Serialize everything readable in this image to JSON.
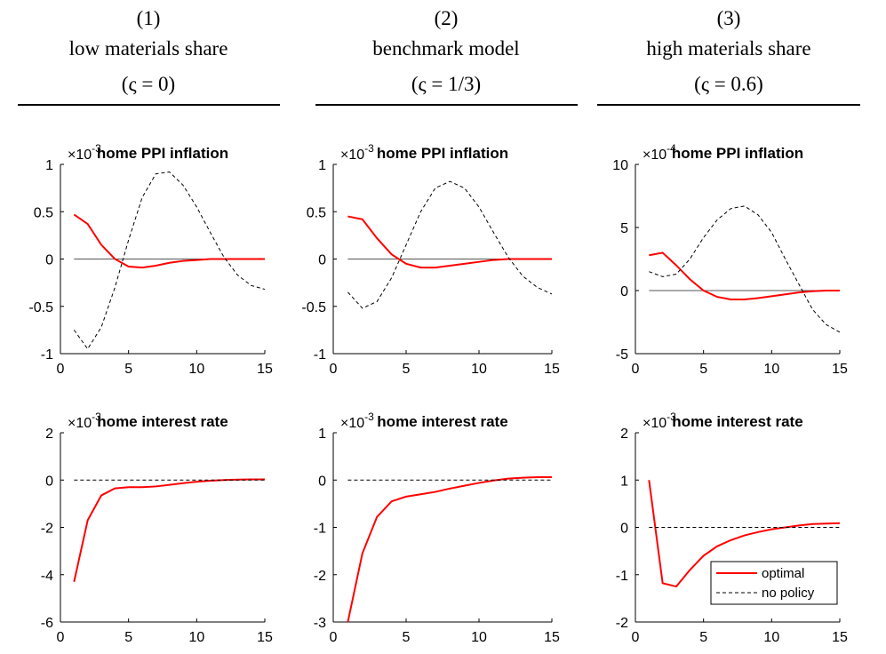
{
  "headers": [
    {
      "number": "(1)",
      "label": "low materials share",
      "param": "(ς = 0)"
    },
    {
      "number": "(2)",
      "label": "benchmark model",
      "param": "(ς = 1/3)"
    },
    {
      "number": "(3)",
      "label": "high materials share",
      "param": "(ς = 0.6)"
    }
  ],
  "chart_data": [
    {
      "type": "line",
      "title": "home PPI inflation",
      "scale_base": "×10",
      "scale_power": "-3",
      "zero_line": true,
      "x": [
        1,
        2,
        3,
        4,
        5,
        6,
        7,
        8,
        9,
        10,
        11,
        12,
        13,
        14,
        15
      ],
      "xlim": [
        0,
        15
      ],
      "xticks": [
        0,
        5,
        10,
        15
      ],
      "ylim": [
        -1,
        1
      ],
      "yticks": [
        -1,
        -0.5,
        0,
        0.5,
        1
      ],
      "series": [
        {
          "color": "#ff0000",
          "dash": false,
          "values": [
            0.47,
            0.37,
            0.15,
            0,
            -0.08,
            -0.09,
            -0.07,
            -0.04,
            -0.02,
            -0.01,
            0,
            0,
            0,
            0,
            0
          ]
        },
        {
          "color": "#000000",
          "dash": true,
          "values": [
            -0.75,
            -0.95,
            -0.72,
            -0.3,
            0.2,
            0.65,
            0.9,
            0.92,
            0.78,
            0.55,
            0.28,
            0.02,
            -0.17,
            -0.28,
            -0.32
          ]
        }
      ]
    },
    {
      "type": "line",
      "title": "home PPI inflation",
      "scale_base": "×10",
      "scale_power": "-3",
      "zero_line": true,
      "x": [
        1,
        2,
        3,
        4,
        5,
        6,
        7,
        8,
        9,
        10,
        11,
        12,
        13,
        14,
        15
      ],
      "xlim": [
        0,
        15
      ],
      "xticks": [
        0,
        5,
        10,
        15
      ],
      "ylim": [
        -1,
        1
      ],
      "yticks": [
        -1,
        -0.5,
        0,
        0.5,
        1
      ],
      "series": [
        {
          "color": "#ff0000",
          "dash": false,
          "values": [
            0.45,
            0.42,
            0.22,
            0.05,
            -0.05,
            -0.09,
            -0.09,
            -0.07,
            -0.05,
            -0.03,
            -0.01,
            0,
            0,
            0,
            0
          ]
        },
        {
          "color": "#000000",
          "dash": true,
          "values": [
            -0.35,
            -0.52,
            -0.45,
            -0.2,
            0.15,
            0.5,
            0.75,
            0.82,
            0.75,
            0.55,
            0.28,
            0.02,
            -0.18,
            -0.3,
            -0.37
          ]
        }
      ]
    },
    {
      "type": "line",
      "title": "home PPI inflation",
      "scale_base": "×10",
      "scale_power": "-4",
      "zero_line": true,
      "x": [
        1,
        2,
        3,
        4,
        5,
        6,
        7,
        8,
        9,
        10,
        11,
        12,
        13,
        14,
        15
      ],
      "xlim": [
        0,
        15
      ],
      "xticks": [
        0,
        5,
        10,
        15
      ],
      "ylim": [
        -5,
        10
      ],
      "yticks": [
        -5,
        0,
        5,
        10
      ],
      "series": [
        {
          "color": "#ff0000",
          "dash": false,
          "values": [
            2.8,
            3.0,
            2.0,
            0.9,
            0,
            -0.5,
            -0.7,
            -0.7,
            -0.6,
            -0.45,
            -0.3,
            -0.15,
            -0.05,
            0,
            0
          ]
        },
        {
          "color": "#000000",
          "dash": true,
          "values": [
            1.5,
            1.1,
            1.3,
            2.5,
            4.2,
            5.6,
            6.5,
            6.7,
            6.0,
            4.6,
            2.5,
            0.5,
            -1.5,
            -2.7,
            -3.3
          ]
        }
      ]
    },
    {
      "type": "line",
      "title": "home interest rate",
      "scale_base": "×10",
      "scale_power": "-3",
      "zero_line": false,
      "x": [
        1,
        2,
        3,
        4,
        5,
        6,
        7,
        8,
        9,
        10,
        11,
        12,
        13,
        14,
        15
      ],
      "xlim": [
        0,
        15
      ],
      "xticks": [
        0,
        5,
        10,
        15
      ],
      "ylim": [
        -6,
        2
      ],
      "yticks": [
        -6,
        -4,
        -2,
        0,
        2
      ],
      "series": [
        {
          "color": "#ff0000",
          "dash": false,
          "values": [
            -4.3,
            -1.7,
            -0.65,
            -0.35,
            -0.3,
            -0.3,
            -0.27,
            -0.2,
            -0.13,
            -0.07,
            -0.03,
            0,
            0.02,
            0.03,
            0.03
          ]
        },
        {
          "color": "#000000",
          "dash": true,
          "values": [
            0,
            0,
            0,
            0,
            0,
            0,
            0,
            0,
            0,
            0,
            0,
            0,
            0,
            0,
            0
          ]
        }
      ]
    },
    {
      "type": "line",
      "title": "home interest rate",
      "scale_base": "×10",
      "scale_power": "-3",
      "zero_line": false,
      "x": [
        1,
        2,
        3,
        4,
        5,
        6,
        7,
        8,
        9,
        10,
        11,
        12,
        13,
        14,
        15
      ],
      "xlim": [
        0,
        15
      ],
      "xticks": [
        0,
        5,
        10,
        15
      ],
      "ylim": [
        -3,
        1
      ],
      "yticks": [
        -3,
        -2,
        -1,
        0,
        1
      ],
      "series": [
        {
          "color": "#ff0000",
          "dash": false,
          "values": [
            -3.0,
            -1.55,
            -0.78,
            -0.45,
            -0.35,
            -0.3,
            -0.25,
            -0.18,
            -0.12,
            -0.06,
            -0.01,
            0.03,
            0.05,
            0.06,
            0.06
          ]
        },
        {
          "color": "#000000",
          "dash": true,
          "values": [
            0,
            0,
            0,
            0,
            0,
            0,
            0,
            0,
            0,
            0,
            0,
            0,
            0,
            0,
            0
          ]
        }
      ]
    },
    {
      "type": "line",
      "title": "home interest rate",
      "scale_base": "×10",
      "scale_power": "-3",
      "zero_line": false,
      "legend": "lower right",
      "x": [
        1,
        2,
        3,
        4,
        5,
        6,
        7,
        8,
        9,
        10,
        11,
        12,
        13,
        14,
        15
      ],
      "xlim": [
        0,
        15
      ],
      "xticks": [
        0,
        5,
        10,
        15
      ],
      "ylim": [
        -2,
        2
      ],
      "yticks": [
        -2,
        -1,
        0,
        1,
        2
      ],
      "series": [
        {
          "name": "optimal",
          "color": "#ff0000",
          "dash": false,
          "values": [
            1.0,
            -1.18,
            -1.25,
            -0.9,
            -0.6,
            -0.4,
            -0.27,
            -0.17,
            -0.1,
            -0.04,
            0,
            0.04,
            0.07,
            0.08,
            0.09
          ]
        },
        {
          "name": "no policy",
          "color": "#000000",
          "dash": true,
          "values": [
            0,
            0,
            0,
            0,
            0,
            0,
            0,
            0,
            0,
            0,
            0,
            0,
            0,
            0,
            0
          ]
        }
      ]
    }
  ]
}
